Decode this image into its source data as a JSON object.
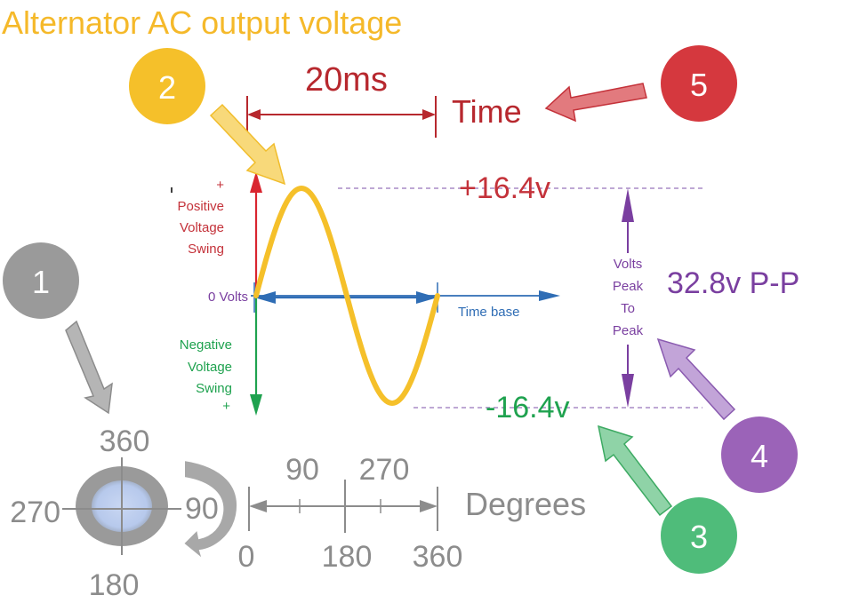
{
  "title": "Alternator AC output voltage",
  "period_label": "20ms",
  "time_label": "Time",
  "axis_labels": {
    "positive": [
      "+",
      "Positive",
      "Voltage",
      "Swing"
    ],
    "zero": "0 Volts",
    "negative": [
      "Negative",
      "Voltage",
      "Swing",
      "+"
    ],
    "time_base": "Time base"
  },
  "peaks": {
    "positive": "+16.4v",
    "negative": "-16.4v",
    "peak_to_peak_label": [
      "Volts",
      "Peak",
      "To",
      "Peak"
    ],
    "peak_to_peak_value": "32.8v P-P"
  },
  "rotation": {
    "top": "360",
    "right": "90",
    "bottom": "180",
    "left": "270"
  },
  "degrees_scale": {
    "label": "Degrees",
    "bottom_ticks": [
      "0",
      "180",
      "360"
    ],
    "top_ticks": [
      "90",
      "270"
    ]
  },
  "callouts": [
    "1",
    "2",
    "3",
    "4",
    "5"
  ],
  "colors": {
    "orange": "#f5c02a",
    "red": "#c4323a",
    "green": "#1fa24f",
    "purple": "#7a3fa0",
    "blue": "#2f6db5",
    "gray": "#8c8c8c"
  }
}
